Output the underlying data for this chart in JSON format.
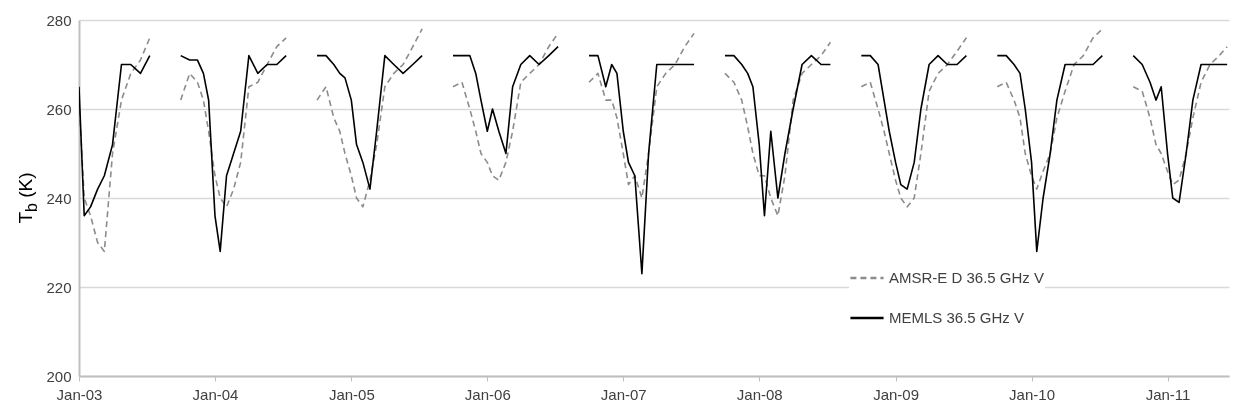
{
  "chart_data": {
    "type": "line",
    "ylabel": "T$_{b}$ (K)",
    "x": [
      "2003-01-01",
      "2003-01-15",
      "2003-02-01",
      "2003-02-20",
      "2003-03-10",
      "2003-04-01",
      "2003-04-25",
      "2003-05-20",
      "2003-06-15",
      "2003-07-10",
      "2003-08-15",
      "2003-10-01",
      "2003-10-25",
      "2003-11-15",
      "2003-12-01",
      "2003-12-15",
      "2004-01-01",
      "2004-01-15",
      "2004-02-01",
      "2004-02-20",
      "2004-03-10",
      "2004-04-01",
      "2004-04-25",
      "2004-05-20",
      "2004-06-15",
      "2004-07-10",
      "2004-08-15",
      "2004-10-01",
      "2004-10-25",
      "2004-11-15",
      "2004-12-01",
      "2004-12-15",
      "2005-01-01",
      "2005-01-15",
      "2005-02-01",
      "2005-02-20",
      "2005-03-10",
      "2005-04-01",
      "2005-04-25",
      "2005-05-20",
      "2005-06-15",
      "2005-07-10",
      "2005-08-15",
      "2005-10-01",
      "2005-10-25",
      "2005-11-15",
      "2005-12-01",
      "2005-12-15",
      "2006-01-01",
      "2006-01-15",
      "2006-02-01",
      "2006-02-20",
      "2006-03-10",
      "2006-04-01",
      "2006-04-25",
      "2006-05-20",
      "2006-06-15",
      "2006-07-10",
      "2006-08-15",
      "2006-10-01",
      "2006-10-25",
      "2006-11-15",
      "2006-12-01",
      "2006-12-15",
      "2007-01-01",
      "2007-01-15",
      "2007-02-01",
      "2007-02-20",
      "2007-03-10",
      "2007-04-01",
      "2007-04-25",
      "2007-05-20",
      "2007-06-15",
      "2007-07-10",
      "2007-08-15",
      "2007-10-01",
      "2007-10-25",
      "2007-11-15",
      "2007-12-01",
      "2007-12-15",
      "2008-01-01",
      "2008-01-15",
      "2008-02-01",
      "2008-02-20",
      "2008-03-10",
      "2008-04-01",
      "2008-04-25",
      "2008-05-20",
      "2008-06-15",
      "2008-07-10",
      "2008-08-15",
      "2008-10-01",
      "2008-10-25",
      "2008-11-15",
      "2008-12-01",
      "2008-12-15",
      "2009-01-01",
      "2009-01-15",
      "2009-02-01",
      "2009-02-20",
      "2009-03-10",
      "2009-04-01",
      "2009-04-25",
      "2009-05-20",
      "2009-06-15",
      "2009-07-10",
      "2009-08-15",
      "2009-10-01",
      "2009-10-25",
      "2009-11-15",
      "2009-12-01",
      "2009-12-15",
      "2010-01-01",
      "2010-01-15",
      "2010-02-01",
      "2010-02-20",
      "2010-03-10",
      "2010-04-01",
      "2010-04-25",
      "2010-05-20",
      "2010-06-15",
      "2010-07-10",
      "2010-08-15",
      "2010-10-01",
      "2010-10-25",
      "2010-11-15",
      "2010-12-01",
      "2010-12-15",
      "2011-01-01",
      "2011-01-15",
      "2011-02-01",
      "2011-02-20",
      "2011-03-10",
      "2011-04-01",
      "2011-04-25",
      "2011-05-20",
      "2011-06-10"
    ],
    "series": [
      {
        "name": "AMSR-E D 36.5 GHz V",
        "color": "#8c8c8c",
        "line_style": "dashed",
        "values": [
          262,
          240,
          236,
          230,
          228,
          250,
          262,
          268,
          271,
          276,
          null,
          262,
          268,
          266,
          262,
          255,
          245,
          240,
          238,
          242,
          248,
          265,
          266,
          270,
          274,
          276,
          null,
          262,
          265,
          258,
          255,
          250,
          245,
          240,
          238,
          244,
          252,
          265,
          268,
          270,
          274,
          278,
          null,
          265,
          266,
          260,
          255,
          250,
          248,
          245,
          244,
          248,
          255,
          266,
          268,
          270,
          274,
          277,
          null,
          266,
          268,
          262,
          262,
          258,
          250,
          243,
          245,
          240,
          250,
          265,
          268,
          270,
          274,
          277,
          null,
          268,
          266,
          262,
          256,
          250,
          245,
          245,
          240,
          236,
          245,
          262,
          268,
          270,
          272,
          275,
          null,
          265,
          266,
          260,
          255,
          250,
          244,
          240,
          238,
          240,
          250,
          264,
          268,
          270,
          273,
          276,
          null,
          265,
          266,
          262,
          258,
          250,
          245,
          242,
          246,
          250,
          258,
          264,
          270,
          272,
          276,
          278,
          null,
          265,
          264,
          258,
          252,
          250,
          246,
          243,
          244,
          250,
          258,
          266,
          270,
          272,
          274
        ]
      },
      {
        "name": "MEMLS 36.5 GHz V",
        "color": "#000000",
        "line_style": "solid",
        "values": [
          265,
          236,
          238,
          242,
          245,
          252,
          270,
          270,
          268,
          272,
          null,
          272,
          271,
          271,
          268,
          262,
          236,
          228,
          245,
          250,
          255,
          272,
          268,
          270,
          270,
          272,
          null,
          272,
          272,
          270,
          268,
          267,
          262,
          252,
          248,
          242,
          255,
          272,
          270,
          268,
          270,
          272,
          null,
          272,
          272,
          272,
          268,
          262,
          255,
          260,
          255,
          250,
          265,
          270,
          272,
          270,
          272,
          274,
          null,
          272,
          272,
          265,
          270,
          268,
          255,
          248,
          245,
          223,
          250,
          270,
          270,
          270,
          270,
          270,
          null,
          272,
          272,
          270,
          268,
          265,
          252,
          236,
          255,
          240,
          250,
          260,
          270,
          272,
          270,
          270,
          null,
          272,
          272,
          270,
          262,
          255,
          248,
          243,
          242,
          248,
          260,
          270,
          272,
          270,
          270,
          272,
          null,
          272,
          272,
          270,
          268,
          260,
          248,
          228,
          240,
          250,
          262,
          270,
          270,
          270,
          270,
          272,
          null,
          272,
          270,
          266,
          262,
          265,
          250,
          240,
          239,
          250,
          262,
          270,
          270,
          270,
          270
        ]
      }
    ],
    "xlim": [
      "2003-01-01",
      "2011-06-15"
    ],
    "xticks": [
      {
        "value": "2003-01-01",
        "label": "Jan-03"
      },
      {
        "value": "2004-01-01",
        "label": "Jan-04"
      },
      {
        "value": "2005-01-01",
        "label": "Jan-05"
      },
      {
        "value": "2006-01-01",
        "label": "Jan-06"
      },
      {
        "value": "2007-01-01",
        "label": "Jan-07"
      },
      {
        "value": "2008-01-01",
        "label": "Jan-08"
      },
      {
        "value": "2009-01-01",
        "label": "Jan-09"
      },
      {
        "value": "2010-01-01",
        "label": "Jan-10"
      },
      {
        "value": "2011-01-01",
        "label": "Jan-11"
      }
    ],
    "ylim": [
      200,
      280
    ],
    "yticks": [
      200,
      220,
      240,
      260,
      280
    ],
    "grid": "y",
    "legend": "bottom right"
  }
}
